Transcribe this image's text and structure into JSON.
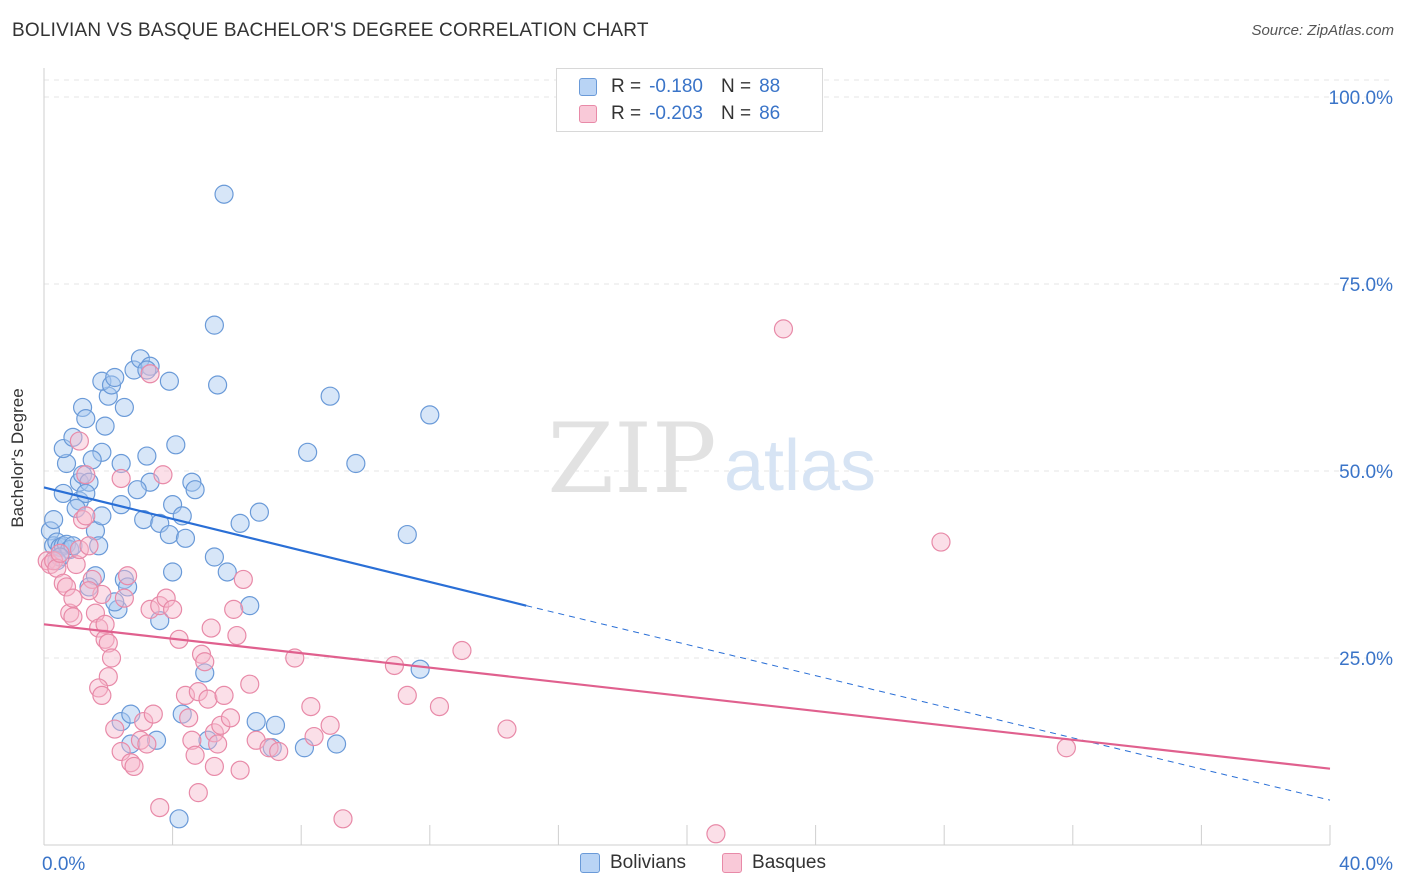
{
  "header": {
    "title": "BOLIVIAN VS BASQUE BACHELOR'S DEGREE CORRELATION CHART",
    "source": "Source: ZipAtlas.com"
  },
  "watermark": {
    "zip": "ZIP",
    "atlas": "atlas"
  },
  "legend": {
    "rows": [
      {
        "r_label": "R =",
        "r_value": "-0.180",
        "n_label": "N =",
        "n_value": "88"
      },
      {
        "r_label": "R =",
        "r_value": "-0.203",
        "n_label": "N =",
        "n_value": "86"
      }
    ]
  },
  "bottom_legend": {
    "bolivians": "Bolivians",
    "basques": "Basques"
  },
  "chart_data": {
    "type": "scatter",
    "title": "BOLIVIAN VS BASQUE BACHELOR'S DEGREE CORRELATION CHART",
    "ylabel": "Bachelor's Degree",
    "xlim": [
      0,
      40
    ],
    "ylim": [
      0,
      100
    ],
    "x_tick_labels": [
      "0.0%",
      "40.0%"
    ],
    "y_tick_labels": [
      "100.0%",
      "75.0%",
      "50.0%",
      "25.0%"
    ],
    "y_ticks": [
      100,
      75,
      50,
      25
    ],
    "grid": true,
    "colors": {
      "bolivians_fill": "#a7c7f0",
      "bolivians_stroke": "#6a9ad8",
      "bolivians_line": "#2a6fd6",
      "basques_fill": "#f6b8cb",
      "basques_stroke": "#e88aa8",
      "basques_line": "#e0608e",
      "axis_text": "#3a74c8"
    },
    "series": [
      {
        "name": "Bolivians",
        "trend": {
          "x": [
            0,
            15
          ],
          "y": [
            47.8,
            32.0
          ],
          "dashed_to": [
            40,
            6.0
          ]
        },
        "points": [
          [
            0.2,
            42
          ],
          [
            0.3,
            40
          ],
          [
            0.4,
            40.5
          ],
          [
            0.5,
            39.8
          ],
          [
            0.6,
            40
          ],
          [
            0.7,
            40.2
          ],
          [
            0.8,
            39.5
          ],
          [
            0.9,
            40
          ],
          [
            0.3,
            43.5
          ],
          [
            0.6,
            47
          ],
          [
            0.7,
            51
          ],
          [
            0.6,
            53
          ],
          [
            0.9,
            54.5
          ],
          [
            1.1,
            48.5
          ],
          [
            1.1,
            46
          ],
          [
            1.2,
            49.5
          ],
          [
            1.4,
            48.5
          ],
          [
            1.3,
            47
          ],
          [
            1.0,
            45
          ],
          [
            1.6,
            42
          ],
          [
            1.8,
            44
          ],
          [
            1.6,
            36
          ],
          [
            1.4,
            34.5
          ],
          [
            1.2,
            58.5
          ],
          [
            1.3,
            57
          ],
          [
            1.9,
            56
          ],
          [
            1.8,
            52.5
          ],
          [
            1.5,
            51.5
          ],
          [
            2.0,
            60
          ],
          [
            1.8,
            62
          ],
          [
            2.1,
            61.5
          ],
          [
            2.2,
            62.5
          ],
          [
            2.5,
            58.5
          ],
          [
            2.4,
            45.5
          ],
          [
            2.4,
            51
          ],
          [
            2.5,
            35.5
          ],
          [
            2.3,
            31.5
          ],
          [
            2.2,
            32.5
          ],
          [
            2.6,
            34.5
          ],
          [
            2.8,
            63.5
          ],
          [
            3.0,
            65
          ],
          [
            3.3,
            64
          ],
          [
            3.2,
            63.5
          ],
          [
            3.9,
            62
          ],
          [
            3.2,
            52
          ],
          [
            3.3,
            48.5
          ],
          [
            2.9,
            47.5
          ],
          [
            3.1,
            43.5
          ],
          [
            3.6,
            43
          ],
          [
            3.9,
            41.5
          ],
          [
            4.0,
            45.5
          ],
          [
            4.1,
            53.5
          ],
          [
            4.4,
            41
          ],
          [
            4.3,
            44
          ],
          [
            4.6,
            48.5
          ],
          [
            4.7,
            47.5
          ],
          [
            4.0,
            36.5
          ],
          [
            3.6,
            30
          ],
          [
            5.3,
            38.5
          ],
          [
            5.3,
            69.5
          ],
          [
            5.4,
            61.5
          ],
          [
            5.6,
            87
          ],
          [
            5.7,
            36.5
          ],
          [
            6.1,
            43
          ],
          [
            6.7,
            44.5
          ],
          [
            6.4,
            32
          ],
          [
            6.6,
            16.5
          ],
          [
            7.2,
            16
          ],
          [
            7.1,
            13
          ],
          [
            8.2,
            52.5
          ],
          [
            8.9,
            60
          ],
          [
            9.7,
            51
          ],
          [
            12.0,
            57.5
          ],
          [
            11.3,
            41.5
          ],
          [
            11.7,
            23.5
          ],
          [
            2.4,
            16.5
          ],
          [
            2.7,
            13.5
          ],
          [
            2.7,
            17.5
          ],
          [
            3.5,
            14
          ],
          [
            4.3,
            17.5
          ],
          [
            5.1,
            14
          ],
          [
            5.0,
            23
          ],
          [
            8.1,
            13
          ],
          [
            9.1,
            13.5
          ],
          [
            4.2,
            3.5
          ],
          [
            0.4,
            38
          ],
          [
            0.5,
            38.5
          ],
          [
            1.7,
            40
          ]
        ]
      },
      {
        "name": "Basques",
        "trend": {
          "x": [
            0,
            40
          ],
          "y": [
            29.5,
            10.2
          ]
        },
        "points": [
          [
            0.1,
            38
          ],
          [
            0.2,
            37.5
          ],
          [
            0.3,
            38
          ],
          [
            0.4,
            37
          ],
          [
            0.5,
            39
          ],
          [
            0.6,
            35
          ],
          [
            0.7,
            34.5
          ],
          [
            0.8,
            31
          ],
          [
            0.9,
            33
          ],
          [
            1.0,
            37.5
          ],
          [
            1.1,
            39.5
          ],
          [
            1.2,
            43.5
          ],
          [
            1.3,
            44
          ],
          [
            1.4,
            40
          ],
          [
            1.5,
            35.5
          ],
          [
            1.6,
            31
          ],
          [
            1.7,
            29
          ],
          [
            1.8,
            33.5
          ],
          [
            1.9,
            29.5
          ],
          [
            1.9,
            27.5
          ],
          [
            2.0,
            27
          ],
          [
            2.1,
            25
          ],
          [
            2.0,
            22.5
          ],
          [
            1.7,
            21
          ],
          [
            1.8,
            20
          ],
          [
            2.2,
            15.5
          ],
          [
            2.4,
            12.5
          ],
          [
            2.7,
            11
          ],
          [
            2.8,
            10.5
          ],
          [
            3.0,
            14
          ],
          [
            3.1,
            16.5
          ],
          [
            3.2,
            13.5
          ],
          [
            3.3,
            31.5
          ],
          [
            3.4,
            17.5
          ],
          [
            3.6,
            32
          ],
          [
            3.8,
            33
          ],
          [
            4.0,
            31.5
          ],
          [
            4.2,
            27.5
          ],
          [
            4.4,
            20
          ],
          [
            4.5,
            17
          ],
          [
            4.6,
            14
          ],
          [
            4.7,
            12
          ],
          [
            4.8,
            20.5
          ],
          [
            4.9,
            25.5
          ],
          [
            5.0,
            24.5
          ],
          [
            5.1,
            19.5
          ],
          [
            5.2,
            29
          ],
          [
            5.3,
            15
          ],
          [
            5.4,
            13.5
          ],
          [
            5.5,
            16
          ],
          [
            5.6,
            20
          ],
          [
            5.8,
            17
          ],
          [
            5.9,
            31.5
          ],
          [
            6.0,
            28
          ],
          [
            6.2,
            35.5
          ],
          [
            6.4,
            21.5
          ],
          [
            6.6,
            14
          ],
          [
            7.0,
            13
          ],
          [
            7.3,
            12.5
          ],
          [
            7.8,
            25
          ],
          [
            8.3,
            18.5
          ],
          [
            8.4,
            14.5
          ],
          [
            8.9,
            16
          ],
          [
            9.3,
            3.5
          ],
          [
            10.9,
            24
          ],
          [
            11.3,
            20
          ],
          [
            12.3,
            18.5
          ],
          [
            13.0,
            26
          ],
          [
            14.4,
            15.5
          ],
          [
            20.9,
            1.5
          ],
          [
            23.0,
            69
          ],
          [
            27.9,
            40.5
          ],
          [
            31.8,
            13
          ],
          [
            1.1,
            54
          ],
          [
            1.3,
            49.5
          ],
          [
            2.4,
            49
          ],
          [
            3.3,
            63
          ],
          [
            3.7,
            49.5
          ],
          [
            2.6,
            36
          ],
          [
            2.5,
            33
          ],
          [
            1.4,
            34
          ],
          [
            0.9,
            30.5
          ],
          [
            3.6,
            5
          ],
          [
            4.8,
            7
          ],
          [
            5.3,
            10.5
          ],
          [
            6.1,
            10
          ]
        ]
      }
    ]
  }
}
